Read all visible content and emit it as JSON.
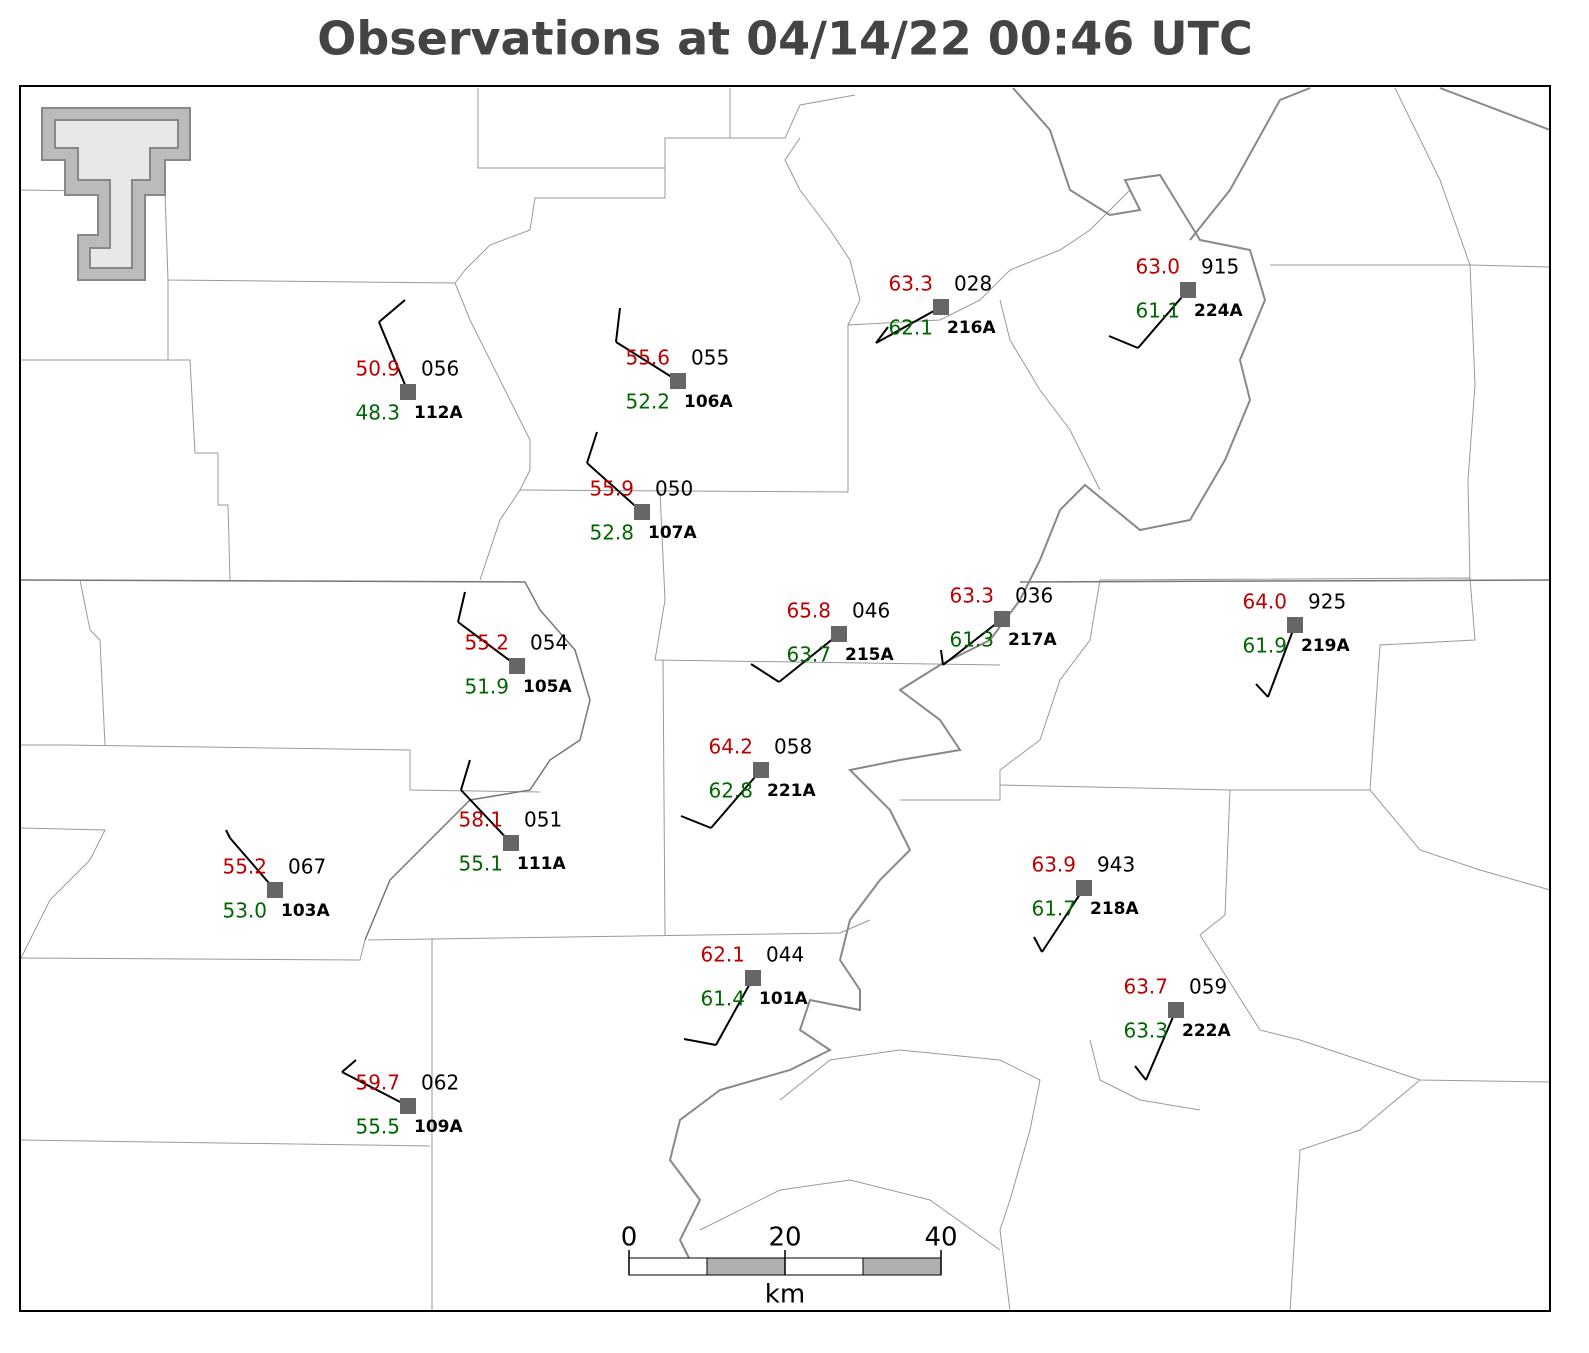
{
  "title": "Observations at 04/14/22 00:46 UTC",
  "stations": [
    {
      "id": "112A",
      "temp": "50.9",
      "dew": "48.3",
      "pres": "056"
    },
    {
      "id": "106A",
      "temp": "55.6",
      "dew": "52.2",
      "pres": "055"
    },
    {
      "id": "107A",
      "temp": "55.9",
      "dew": "52.8",
      "pres": "050"
    },
    {
      "id": "216A",
      "temp": "63.3",
      "dew": "62.1",
      "pres": "028"
    },
    {
      "id": "224A",
      "temp": "63.0",
      "dew": "61.1",
      "pres": "915"
    },
    {
      "id": "105A",
      "temp": "55.2",
      "dew": "51.9",
      "pres": "054"
    },
    {
      "id": "215A",
      "temp": "65.8",
      "dew": "63.7",
      "pres": "046"
    },
    {
      "id": "217A",
      "temp": "63.3",
      "dew": "61.3",
      "pres": "036"
    },
    {
      "id": "219A",
      "temp": "64.0",
      "dew": "61.9",
      "pres": "925"
    },
    {
      "id": "221A",
      "temp": "64.2",
      "dew": "62.8",
      "pres": "058"
    },
    {
      "id": "111A",
      "temp": "58.1",
      "dew": "55.1",
      "pres": "051"
    },
    {
      "id": "103A",
      "temp": "55.2",
      "dew": "53.0",
      "pres": "067"
    },
    {
      "id": "218A",
      "temp": "63.9",
      "dew": "61.7",
      "pres": "943"
    },
    {
      "id": "101A",
      "temp": "62.1",
      "dew": "61.4",
      "pres": "044"
    },
    {
      "id": "222A",
      "temp": "63.7",
      "dew": "63.3",
      "pres": "059"
    },
    {
      "id": "109A",
      "temp": "59.7",
      "dew": "55.5",
      "pres": "062"
    }
  ],
  "scale_bar": {
    "labels": [
      "0",
      "20",
      "40"
    ],
    "unit": "km"
  }
}
